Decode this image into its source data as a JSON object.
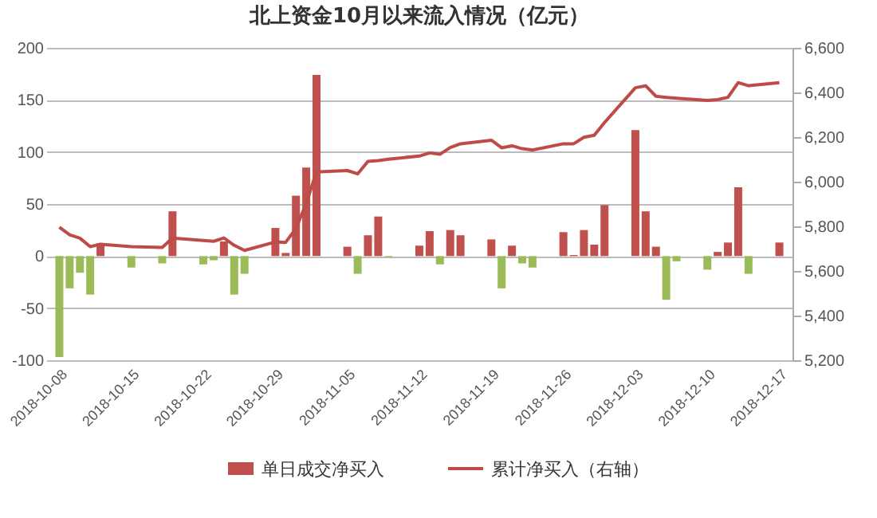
{
  "chart_data": {
    "type": "bar",
    "title": "北上资金10月以来流入情况（亿元）",
    "x": [
      "2018-10-08",
      "2018-10-09",
      "2018-10-10",
      "2018-10-11",
      "2018-10-12",
      "2018-10-15",
      "2018-10-18",
      "2018-10-19",
      "2018-10-22",
      "2018-10-23",
      "2018-10-24",
      "2018-10-25",
      "2018-10-26",
      "2018-10-29",
      "2018-10-30",
      "2018-10-31",
      "2018-11-01",
      "2018-11-02",
      "2018-11-05",
      "2018-11-06",
      "2018-11-07",
      "2018-11-08",
      "2018-11-09",
      "2018-11-12",
      "2018-11-13",
      "2018-11-14",
      "2018-11-15",
      "2018-11-16",
      "2018-11-19",
      "2018-11-20",
      "2018-11-21",
      "2018-11-22",
      "2018-11-23",
      "2018-11-26",
      "2018-11-27",
      "2018-11-28",
      "2018-11-29",
      "2018-11-30",
      "2018-12-03",
      "2018-12-04",
      "2018-12-05",
      "2018-12-06",
      "2018-12-07",
      "2018-12-10",
      "2018-12-11",
      "2018-12-12",
      "2018-12-13",
      "2018-12-14",
      "2018-12-17"
    ],
    "series": [
      {
        "name": "单日成交净买入",
        "color": "#c0504d",
        "colors": [
          "#9bbb59",
          "#9bbb59",
          "#9bbb59",
          "#9bbb59",
          "#c0504d",
          "#9bbb59",
          "#9bbb59",
          "#c0504d",
          "#9bbb59",
          "#9bbb59",
          "#c0504d",
          "#9bbb59",
          "#9bbb59",
          "#c0504d",
          "#c0504d",
          "#c0504d",
          "#c0504d",
          "#c0504d",
          "#c0504d",
          "#9bbb59",
          "#c0504d",
          "#c0504d",
          "#9bbb59",
          "#c0504d",
          "#c0504d",
          "#9bbb59",
          "#c0504d",
          "#c0504d",
          "#c0504d",
          "#9bbb59",
          "#c0504d",
          "#9bbb59",
          "#9bbb59",
          "#c0504d",
          "#c0504d",
          "#c0504d",
          "#c0504d",
          "#c0504d",
          "#c0504d",
          "#c0504d",
          "#c0504d",
          "#9bbb59",
          "#9bbb59",
          "#9bbb59",
          "#c0504d",
          "#c0504d",
          "#c0504d",
          "#9bbb59",
          "#c0504d"
        ],
        "values": [
          -97,
          -31,
          -16,
          -37,
          12,
          -11,
          -7,
          43,
          -8,
          -4,
          14,
          -37,
          -17,
          27,
          3,
          58,
          85,
          174,
          9,
          -17,
          20,
          38,
          -1,
          10,
          24,
          -8,
          25,
          20,
          16,
          -31,
          10,
          -7,
          -11,
          23,
          1,
          25,
          11,
          49,
          121,
          43,
          9,
          -42,
          -5,
          -13,
          4,
          13,
          66,
          -17,
          13
        ]
      },
      {
        "name": "累计净买入（右轴）",
        "type": "line",
        "axis": "y2",
        "color": "#be4b48",
        "values": [
          5796,
          5762,
          5747,
          5709,
          5720,
          5709,
          5705,
          5747,
          5737,
          5733,
          5748,
          5715,
          5692,
          5730,
          5728,
          5790,
          5903,
          6044,
          6050,
          6035,
          6091,
          6095,
          6101,
          6115,
          6129,
          6123,
          6153,
          6170,
          6186,
          6152,
          6161,
          6148,
          6142,
          6170,
          6170,
          6199,
          6208,
          6265,
          6421,
          6430,
          6383,
          6378,
          6374,
          6364,
          6368,
          6378,
          6444,
          6430,
          6444
        ]
      }
    ],
    "xlim": [
      "2018-10-07T12:00",
      "2018-12-17T12:00"
    ],
    "xticks": [
      "2018-10-08",
      "2018-10-15",
      "2018-10-22",
      "2018-10-29",
      "2018-11-05",
      "2018-11-12",
      "2018-11-19",
      "2018-11-26",
      "2018-12-03",
      "2018-12-10",
      "2018-12-17"
    ],
    "ylim": [
      -100,
      200
    ],
    "yticks": [
      -100,
      -50,
      0,
      50,
      100,
      150,
      200
    ],
    "y2lim": [
      5200,
      6600
    ],
    "y2ticks": [
      {
        "value": 5200,
        "label": "5,200"
      },
      {
        "value": 5400,
        "label": "5,400"
      },
      {
        "value": 5600,
        "label": "5,600"
      },
      {
        "value": 5800,
        "label": "5,800"
      },
      {
        "value": 6000,
        "label": "6,000"
      },
      {
        "value": 6200,
        "label": "6,200"
      },
      {
        "value": 6400,
        "label": "6,400"
      },
      {
        "value": 6600,
        "label": "6,600"
      }
    ],
    "grid": "y",
    "legend": "bottom",
    "marker": "none"
  }
}
